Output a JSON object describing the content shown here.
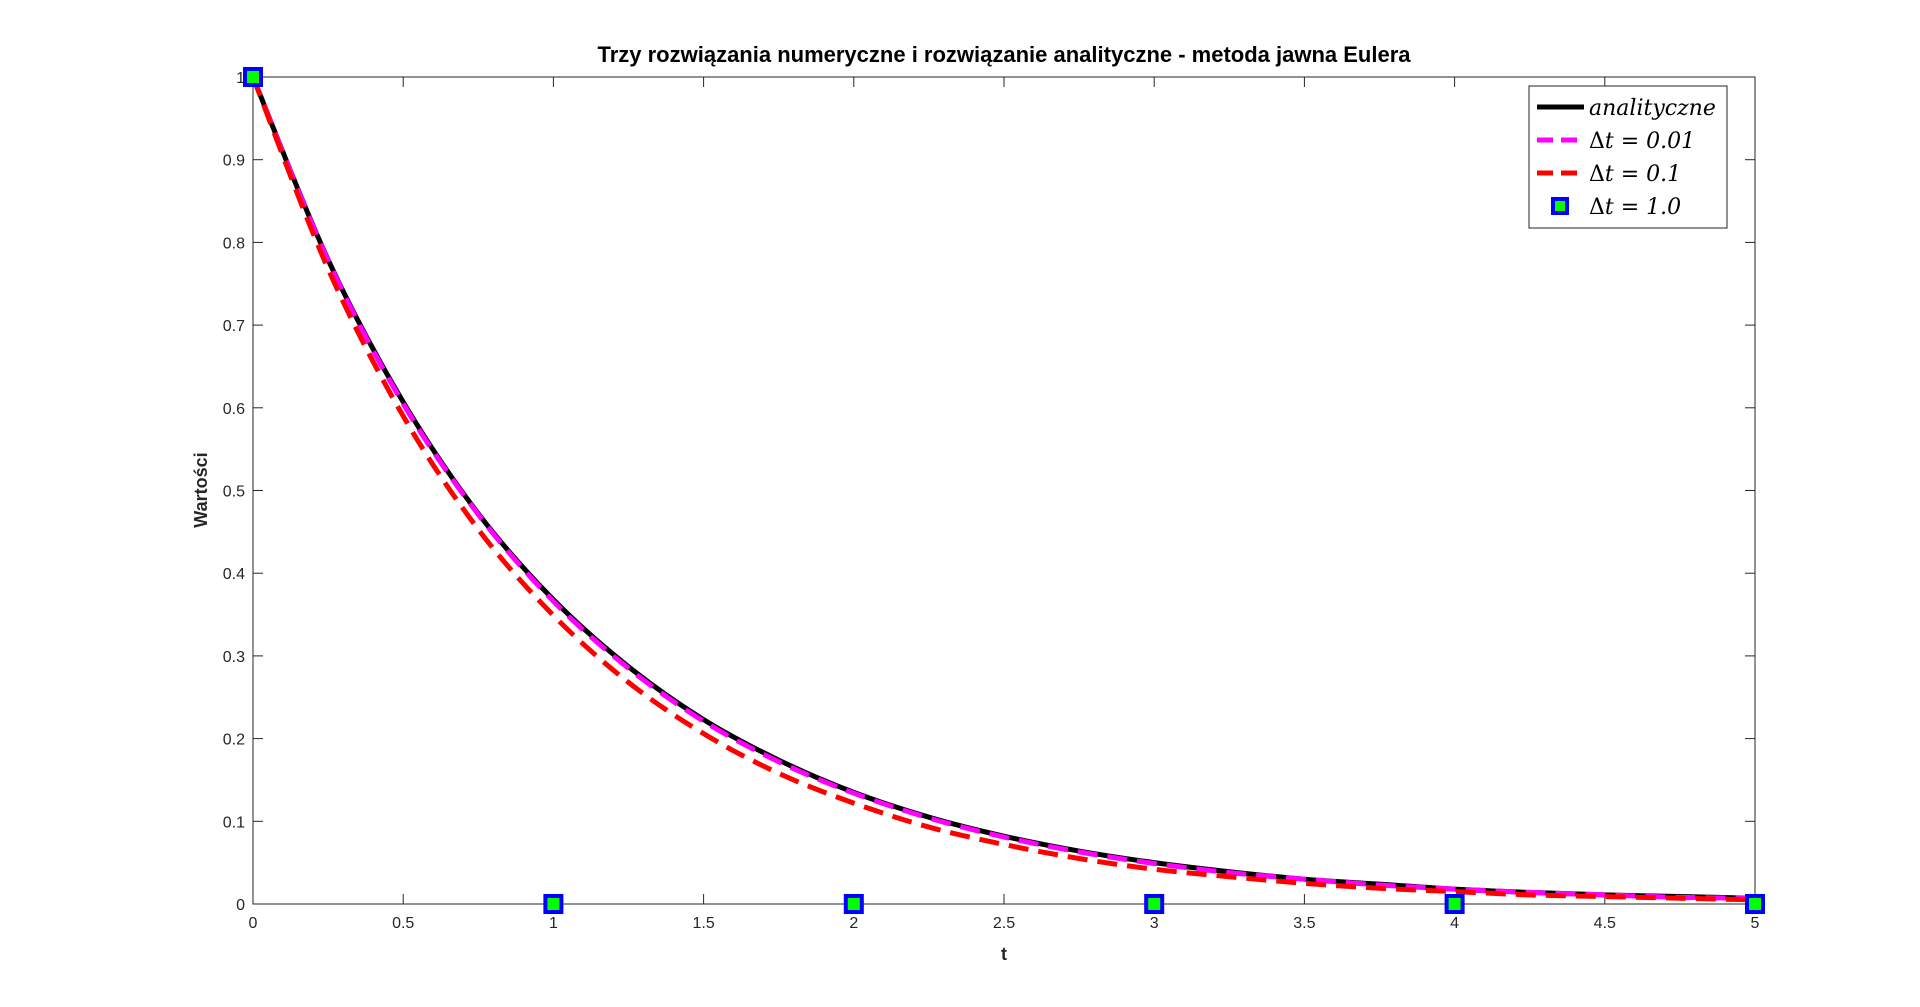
{
  "chart_data": {
    "type": "line",
    "title": "Trzy rozwiązania numeryczne i rozwiązanie analityczne - metoda jawna Eulera",
    "xlabel": "t",
    "ylabel": "Wartości",
    "xlim": [
      0,
      5
    ],
    "ylim": [
      0,
      1
    ],
    "xticks": [
      "0",
      "0.5",
      "1",
      "1.5",
      "2",
      "2.5",
      "3",
      "3.5",
      "4",
      "4.5",
      "5"
    ],
    "yticks": [
      "0",
      "0.1",
      "0.2",
      "0.3",
      "0.4",
      "0.5",
      "0.6",
      "0.7",
      "0.8",
      "0.9",
      "1"
    ],
    "grid": false,
    "legend_position": "top-right",
    "series": [
      {
        "name": "analityczne",
        "color": "#000000",
        "style": "solid",
        "x": [
          0,
          0.25,
          0.5,
          0.75,
          1,
          1.25,
          1.5,
          1.75,
          2,
          2.25,
          2.5,
          2.75,
          3,
          3.25,
          3.5,
          3.75,
          4,
          4.25,
          4.5,
          4.75,
          5
        ],
        "y": [
          1,
          0.779,
          0.607,
          0.472,
          0.368,
          0.287,
          0.223,
          0.174,
          0.135,
          0.105,
          0.082,
          0.064,
          0.05,
          0.039,
          0.03,
          0.024,
          0.018,
          0.014,
          0.011,
          0.009,
          0.007
        ]
      },
      {
        "name": "Δt = 0.01",
        "color": "#ff00ff",
        "style": "dashed",
        "x": [
          0,
          0.25,
          0.5,
          0.75,
          1,
          1.25,
          1.5,
          1.75,
          2,
          2.25,
          2.5,
          2.75,
          3,
          3.25,
          3.5,
          3.75,
          4,
          4.25,
          4.5,
          4.75,
          5
        ],
        "y": [
          1,
          0.778,
          0.605,
          0.471,
          0.366,
          0.285,
          0.221,
          0.172,
          0.134,
          0.104,
          0.081,
          0.063,
          0.049,
          0.038,
          0.03,
          0.023,
          0.018,
          0.014,
          0.011,
          0.008,
          0.007
        ]
      },
      {
        "name": "Δt = 0.1",
        "color": "#ff0000",
        "style": "dashed",
        "x": [
          0,
          0.25,
          0.5,
          0.75,
          1,
          1.25,
          1.5,
          1.75,
          2,
          2.25,
          2.5,
          2.75,
          3,
          3.25,
          3.5,
          3.75,
          4,
          4.25,
          4.5,
          4.75,
          5
        ],
        "y": [
          1,
          0.768,
          0.59,
          0.453,
          0.349,
          0.268,
          0.206,
          0.158,
          0.122,
          0.093,
          0.072,
          0.055,
          0.042,
          0.033,
          0.025,
          0.019,
          0.015,
          0.011,
          0.009,
          0.007,
          0.005
        ]
      },
      {
        "name": "Δt = 1.0",
        "color": "#0000ff",
        "fill": "#00ff00",
        "style": "markers",
        "x": [
          0,
          1,
          2,
          3,
          4,
          5
        ],
        "y": [
          1,
          0,
          0,
          0,
          0,
          0
        ]
      }
    ],
    "legend": [
      {
        "prefix": "",
        "label": "analityczne",
        "italic": true
      },
      {
        "prefix": "Δ",
        "label": "t = 0.01",
        "italic": true
      },
      {
        "prefix": "Δ",
        "label": "t = 0.1",
        "italic": true
      },
      {
        "prefix": "Δ",
        "label": "t = 1.0",
        "italic": true
      }
    ]
  }
}
